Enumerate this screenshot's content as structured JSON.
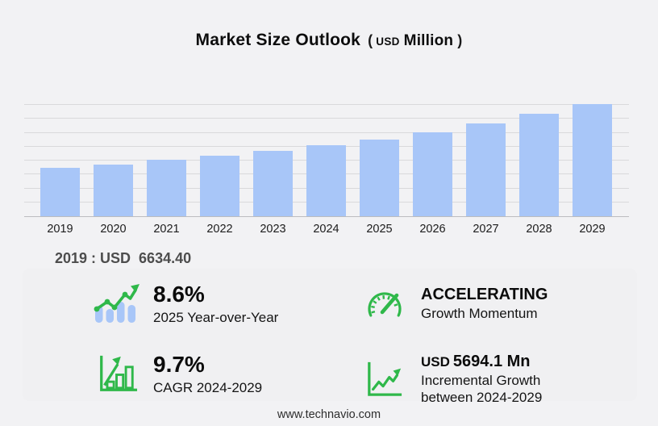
{
  "title": {
    "main": "Market Size Outlook",
    "paren_open": "(",
    "currency": "USD",
    "unit": "Million",
    "paren_close": ")"
  },
  "chart_data": {
    "type": "bar",
    "title": "Market Size Outlook (USD Million)",
    "categories": [
      "2019",
      "2020",
      "2021",
      "2022",
      "2023",
      "2024",
      "2025",
      "2026",
      "2027",
      "2028",
      "2029"
    ],
    "values": [
      6634.4,
      7050,
      7720,
      8280,
      8950,
      9674,
      10506,
      11525,
      12645,
      14065,
      15368
    ],
    "unit": "USD Million",
    "ylim": [
      0,
      16000
    ],
    "grid": "horizontal",
    "gridline_count": 8,
    "legend": "none",
    "xlabel": "",
    "ylabel": "",
    "bar_color": "#a8c6f8",
    "base_year_note": "2019 : USD  6634.40"
  },
  "stats": [
    {
      "value": "8.6%",
      "label": "2025 Year-over-Year",
      "icon": "bar-chart-trend-icon"
    },
    {
      "value": "ACCELERATING",
      "label": "Growth Momentum",
      "icon": "speedometer-icon"
    },
    {
      "value": "9.7%",
      "label": "CAGR 2024-2029",
      "icon": "bar-chart-growth-icon"
    },
    {
      "value_prefix": "USD",
      "value": "5694.1 Mn",
      "label_line1": "Incremental Growth",
      "label_line2": "between 2024-2029",
      "icon": "line-chart-axes-icon"
    }
  ],
  "footer": {
    "website": "www.technavio.com"
  },
  "colors": {
    "background": "#f2f2f4",
    "panel": "#f0f0f2",
    "accent_green": "#2fb84a",
    "bar_fill": "#a8c6f8"
  }
}
